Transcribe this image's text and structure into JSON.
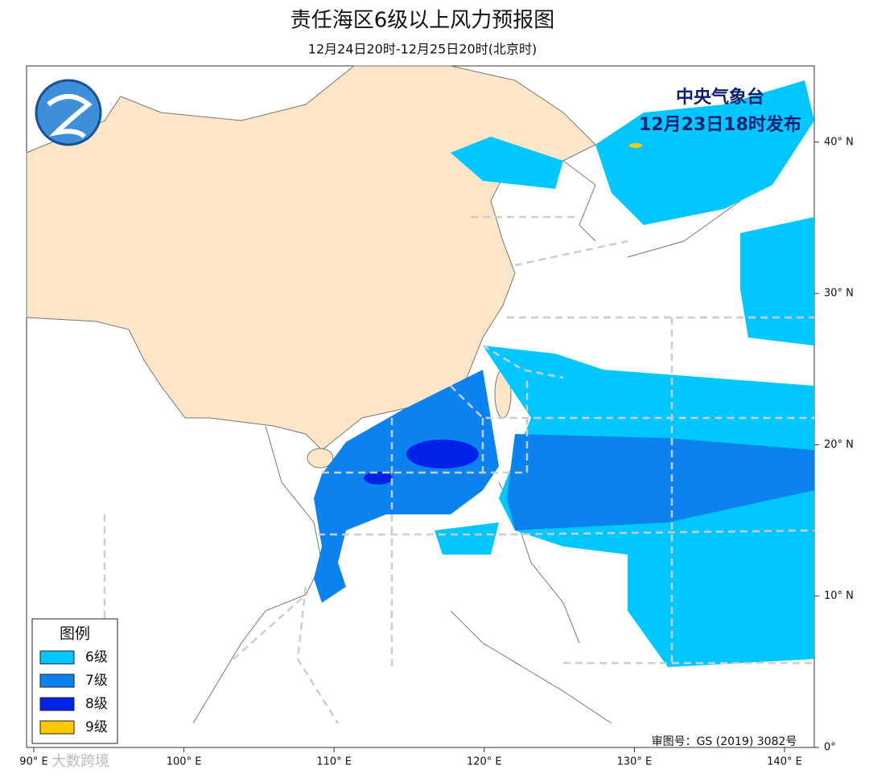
{
  "title": "责任海区6级以上风力预报图",
  "subtitle": "12月24日20时-12月25日20时(北京时)",
  "issuer": {
    "name": "中央气象台",
    "time": "12月23日18时发布"
  },
  "legend": {
    "title": "图例",
    "items": [
      {
        "label": "6级",
        "color": "#00c8ff"
      },
      {
        "label": "7级",
        "color": "#0a82f0"
      },
      {
        "label": "8级",
        "color": "#0022e6"
      },
      {
        "label": "9级",
        "color": "#ffc800"
      }
    ]
  },
  "lon_ticks": [
    {
      "value": 90,
      "label": "90° E"
    },
    {
      "value": 100,
      "label": "100° E"
    },
    {
      "value": 110,
      "label": "110° E"
    },
    {
      "value": 120,
      "label": "120° E"
    },
    {
      "value": 130,
      "label": "130° E"
    },
    {
      "value": 140,
      "label": "140° E"
    }
  ],
  "lat_ticks": [
    {
      "value": 0,
      "label": "0°"
    },
    {
      "value": 10,
      "label": "10° N"
    },
    {
      "value": 20,
      "label": "20° N"
    },
    {
      "value": 30,
      "label": "30° N"
    },
    {
      "value": 40,
      "label": "40° N"
    }
  ],
  "approval": "审图号：GS (2019) 3082号",
  "watermark": "大数跨境"
}
